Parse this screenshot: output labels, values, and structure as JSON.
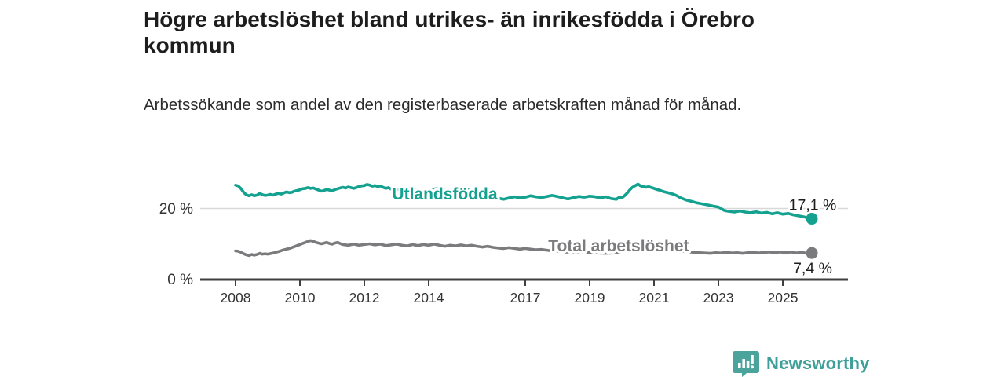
{
  "header": {
    "title": "Högre arbetslöshet bland utrikes- än inrikesfödda i Örebro kommun",
    "subtitle": "Arbetssökande som andel av den registerbaserade arbetskraften månad för månad."
  },
  "chart_data": {
    "type": "line",
    "unit": "%",
    "grid": "horizontal-only",
    "legend_position": "inline-labels-on-lines",
    "xlim": [
      2006.9,
      2027.0
    ],
    "ylim": [
      0,
      30
    ],
    "x_tick_years": [
      2008,
      2010,
      2012,
      2014,
      2017,
      2019,
      2021,
      2023,
      2025
    ],
    "x_tick_labels": [
      "2008",
      "2010",
      "2012",
      "2014",
      "2017",
      "2019",
      "2021",
      "2023",
      "2025"
    ],
    "y_ticks": [
      {
        "value": 0,
        "label": "0 %"
      },
      {
        "value": 20,
        "label": "20 %"
      }
    ],
    "y_gridlines": [
      20
    ],
    "series": [
      {
        "name": "Total arbetslöshet",
        "color": "#7b7b7d",
        "end_value": 7.4,
        "end_label": "7,4 %",
        "end_label_side": "below",
        "label_at": {
          "year": 2019.9,
          "value": 9.4
        },
        "points": [
          [
            2008.0,
            8.0
          ],
          [
            2008.08,
            7.9
          ],
          [
            2008.17,
            7.6
          ],
          [
            2008.25,
            7.2
          ],
          [
            2008.33,
            6.9
          ],
          [
            2008.42,
            6.7
          ],
          [
            2008.5,
            7.0
          ],
          [
            2008.58,
            6.8
          ],
          [
            2008.67,
            7.0
          ],
          [
            2008.75,
            7.3
          ],
          [
            2008.83,
            7.1
          ],
          [
            2008.92,
            7.2
          ],
          [
            2009.0,
            7.1
          ],
          [
            2009.17,
            7.4
          ],
          [
            2009.33,
            7.8
          ],
          [
            2009.5,
            8.3
          ],
          [
            2009.67,
            8.7
          ],
          [
            2009.83,
            9.2
          ],
          [
            2010.0,
            9.8
          ],
          [
            2010.08,
            10.1
          ],
          [
            2010.17,
            10.4
          ],
          [
            2010.25,
            10.7
          ],
          [
            2010.33,
            10.9
          ],
          [
            2010.42,
            10.7
          ],
          [
            2010.5,
            10.4
          ],
          [
            2010.58,
            10.2
          ],
          [
            2010.67,
            10.0
          ],
          [
            2010.75,
            10.2
          ],
          [
            2010.83,
            10.4
          ],
          [
            2010.92,
            10.1
          ],
          [
            2011.0,
            9.9
          ],
          [
            2011.08,
            10.2
          ],
          [
            2011.17,
            10.4
          ],
          [
            2011.25,
            10.1
          ],
          [
            2011.33,
            9.8
          ],
          [
            2011.5,
            9.6
          ],
          [
            2011.67,
            9.9
          ],
          [
            2011.83,
            9.6
          ],
          [
            2012.0,
            9.8
          ],
          [
            2012.17,
            10.0
          ],
          [
            2012.33,
            9.7
          ],
          [
            2012.5,
            9.9
          ],
          [
            2012.67,
            9.5
          ],
          [
            2012.83,
            9.7
          ],
          [
            2013.0,
            9.9
          ],
          [
            2013.17,
            9.6
          ],
          [
            2013.33,
            9.4
          ],
          [
            2013.5,
            9.8
          ],
          [
            2013.67,
            9.5
          ],
          [
            2013.83,
            9.8
          ],
          [
            2014.0,
            9.6
          ],
          [
            2014.17,
            9.9
          ],
          [
            2014.33,
            9.6
          ],
          [
            2014.5,
            9.3
          ],
          [
            2014.67,
            9.6
          ],
          [
            2014.83,
            9.4
          ],
          [
            2015.0,
            9.7
          ],
          [
            2015.17,
            9.4
          ],
          [
            2015.33,
            9.6
          ],
          [
            2015.5,
            9.3
          ],
          [
            2015.67,
            9.1
          ],
          [
            2015.83,
            9.3
          ],
          [
            2016.0,
            9.0
          ],
          [
            2016.17,
            8.8
          ],
          [
            2016.33,
            8.7
          ],
          [
            2016.5,
            8.9
          ],
          [
            2016.67,
            8.7
          ],
          [
            2016.83,
            8.5
          ],
          [
            2017.0,
            8.7
          ],
          [
            2017.17,
            8.5
          ],
          [
            2017.33,
            8.3
          ],
          [
            2017.5,
            8.4
          ],
          [
            2017.67,
            8.2
          ],
          [
            2017.83,
            8.0
          ],
          [
            2018.0,
            7.9
          ],
          [
            2018.25,
            7.7
          ],
          [
            2018.5,
            7.6
          ],
          [
            2018.75,
            7.5
          ],
          [
            2019.0,
            7.6
          ],
          [
            2019.25,
            7.4
          ],
          [
            2019.5,
            7.3
          ],
          [
            2019.75,
            7.4
          ],
          [
            2020.0,
            7.7
          ],
          [
            2020.17,
            8.5
          ],
          [
            2020.33,
            9.1
          ],
          [
            2020.5,
            9.4
          ],
          [
            2020.67,
            9.2
          ],
          [
            2020.83,
            9.0
          ],
          [
            2021.0,
            8.9
          ],
          [
            2021.25,
            8.6
          ],
          [
            2021.5,
            8.3
          ],
          [
            2021.75,
            8.0
          ],
          [
            2022.0,
            7.8
          ],
          [
            2022.25,
            7.6
          ],
          [
            2022.42,
            7.5
          ],
          [
            2022.58,
            7.4
          ],
          [
            2022.75,
            7.3
          ],
          [
            2022.92,
            7.5
          ],
          [
            2023.08,
            7.4
          ],
          [
            2023.25,
            7.6
          ],
          [
            2023.42,
            7.4
          ],
          [
            2023.58,
            7.5
          ],
          [
            2023.75,
            7.3
          ],
          [
            2023.92,
            7.5
          ],
          [
            2024.08,
            7.6
          ],
          [
            2024.25,
            7.4
          ],
          [
            2024.42,
            7.6
          ],
          [
            2024.58,
            7.7
          ],
          [
            2024.75,
            7.5
          ],
          [
            2024.92,
            7.7
          ],
          [
            2025.08,
            7.5
          ],
          [
            2025.25,
            7.7
          ],
          [
            2025.42,
            7.4
          ],
          [
            2025.58,
            7.6
          ],
          [
            2025.75,
            7.3
          ],
          [
            2025.83,
            7.4
          ]
        ]
      },
      {
        "name": "Utlandsfödda",
        "color": "#14a18f",
        "end_value": 17.1,
        "end_label": "17,1 %",
        "end_label_side": "above",
        "label_at": {
          "year": 2014.5,
          "value": 24.1
        },
        "points": [
          [
            2008.0,
            26.6
          ],
          [
            2008.08,
            26.4
          ],
          [
            2008.17,
            25.6
          ],
          [
            2008.25,
            24.6
          ],
          [
            2008.33,
            23.9
          ],
          [
            2008.42,
            23.6
          ],
          [
            2008.5,
            23.9
          ],
          [
            2008.58,
            23.6
          ],
          [
            2008.67,
            23.8
          ],
          [
            2008.75,
            24.3
          ],
          [
            2008.83,
            23.9
          ],
          [
            2008.92,
            23.7
          ],
          [
            2009.0,
            23.8
          ],
          [
            2009.08,
            24.0
          ],
          [
            2009.17,
            23.8
          ],
          [
            2009.25,
            24.1
          ],
          [
            2009.33,
            24.3
          ],
          [
            2009.42,
            24.1
          ],
          [
            2009.5,
            24.4
          ],
          [
            2009.58,
            24.7
          ],
          [
            2009.67,
            24.5
          ],
          [
            2009.75,
            24.6
          ],
          [
            2009.83,
            24.9
          ],
          [
            2009.92,
            25.1
          ],
          [
            2010.0,
            25.3
          ],
          [
            2010.08,
            25.6
          ],
          [
            2010.17,
            25.7
          ],
          [
            2010.25,
            25.9
          ],
          [
            2010.33,
            25.7
          ],
          [
            2010.42,
            25.8
          ],
          [
            2010.5,
            25.5
          ],
          [
            2010.58,
            25.2
          ],
          [
            2010.67,
            24.9
          ],
          [
            2010.75,
            25.1
          ],
          [
            2010.83,
            25.4
          ],
          [
            2010.92,
            25.2
          ],
          [
            2011.0,
            25.0
          ],
          [
            2011.08,
            25.3
          ],
          [
            2011.17,
            25.6
          ],
          [
            2011.25,
            25.8
          ],
          [
            2011.33,
            26.0
          ],
          [
            2011.42,
            25.8
          ],
          [
            2011.5,
            26.1
          ],
          [
            2011.58,
            25.9
          ],
          [
            2011.67,
            25.7
          ],
          [
            2011.75,
            25.9
          ],
          [
            2011.83,
            26.2
          ],
          [
            2011.92,
            26.4
          ],
          [
            2012.0,
            26.5
          ],
          [
            2012.08,
            26.8
          ],
          [
            2012.17,
            26.6
          ],
          [
            2012.25,
            26.3
          ],
          [
            2012.33,
            26.5
          ],
          [
            2012.42,
            26.2
          ],
          [
            2012.5,
            26.4
          ],
          [
            2012.58,
            26.0
          ],
          [
            2012.67,
            25.7
          ],
          [
            2012.75,
            25.9
          ],
          [
            2012.83,
            25.5
          ],
          [
            2012.92,
            25.7
          ],
          [
            2013.0,
            25.4
          ],
          [
            2013.25,
            25.1
          ],
          [
            2013.5,
            25.4
          ],
          [
            2013.75,
            25.0
          ],
          [
            2014.0,
            25.3
          ],
          [
            2014.25,
            25.6
          ],
          [
            2014.5,
            25.2
          ],
          [
            2014.75,
            25.4
          ],
          [
            2015.0,
            25.1
          ],
          [
            2015.25,
            25.3
          ],
          [
            2015.5,
            24.8
          ],
          [
            2015.75,
            24.2
          ],
          [
            2016.0,
            23.4
          ],
          [
            2016.17,
            22.9
          ],
          [
            2016.33,
            22.6
          ],
          [
            2016.5,
            23.0
          ],
          [
            2016.67,
            23.3
          ],
          [
            2016.83,
            23.0
          ],
          [
            2017.0,
            23.2
          ],
          [
            2017.17,
            23.6
          ],
          [
            2017.33,
            23.3
          ],
          [
            2017.5,
            23.1
          ],
          [
            2017.67,
            23.4
          ],
          [
            2017.83,
            23.7
          ],
          [
            2018.0,
            23.4
          ],
          [
            2018.17,
            23.0
          ],
          [
            2018.33,
            22.7
          ],
          [
            2018.5,
            23.1
          ],
          [
            2018.67,
            23.4
          ],
          [
            2018.83,
            23.2
          ],
          [
            2019.0,
            23.5
          ],
          [
            2019.17,
            23.3
          ],
          [
            2019.33,
            23.0
          ],
          [
            2019.5,
            23.3
          ],
          [
            2019.67,
            22.8
          ],
          [
            2019.83,
            22.6
          ],
          [
            2019.92,
            23.2
          ],
          [
            2020.0,
            23.0
          ],
          [
            2020.08,
            23.6
          ],
          [
            2020.17,
            24.4
          ],
          [
            2020.25,
            25.3
          ],
          [
            2020.33,
            26.0
          ],
          [
            2020.42,
            26.5
          ],
          [
            2020.5,
            26.9
          ],
          [
            2020.58,
            26.4
          ],
          [
            2020.67,
            26.2
          ],
          [
            2020.75,
            26.0
          ],
          [
            2020.83,
            26.2
          ],
          [
            2020.92,
            25.9
          ],
          [
            2021.0,
            25.7
          ],
          [
            2021.08,
            25.4
          ],
          [
            2021.17,
            25.2
          ],
          [
            2021.25,
            24.9
          ],
          [
            2021.33,
            24.7
          ],
          [
            2021.42,
            24.5
          ],
          [
            2021.5,
            24.3
          ],
          [
            2021.58,
            24.1
          ],
          [
            2021.67,
            23.8
          ],
          [
            2021.75,
            23.4
          ],
          [
            2021.83,
            23.0
          ],
          [
            2021.92,
            22.7
          ],
          [
            2022.0,
            22.4
          ],
          [
            2022.17,
            22.0
          ],
          [
            2022.33,
            21.6
          ],
          [
            2022.5,
            21.3
          ],
          [
            2022.67,
            21.0
          ],
          [
            2022.83,
            20.7
          ],
          [
            2023.0,
            20.4
          ],
          [
            2023.08,
            20.0
          ],
          [
            2023.17,
            19.5
          ],
          [
            2023.25,
            19.3
          ],
          [
            2023.33,
            19.2
          ],
          [
            2023.5,
            19.0
          ],
          [
            2023.67,
            19.3
          ],
          [
            2023.83,
            19.0
          ],
          [
            2024.0,
            18.8
          ],
          [
            2024.17,
            19.1
          ],
          [
            2024.33,
            18.7
          ],
          [
            2024.5,
            18.9
          ],
          [
            2024.67,
            18.5
          ],
          [
            2024.83,
            18.8
          ],
          [
            2025.0,
            18.4
          ],
          [
            2025.17,
            18.6
          ],
          [
            2025.33,
            18.2
          ],
          [
            2025.5,
            17.9
          ],
          [
            2025.67,
            17.6
          ],
          [
            2025.83,
            17.1
          ]
        ]
      }
    ]
  },
  "branding": {
    "logo_text": "Newsworthy",
    "logo_color": "#3d9f97",
    "logo_icon": "bar-chart-speech-bubble"
  }
}
